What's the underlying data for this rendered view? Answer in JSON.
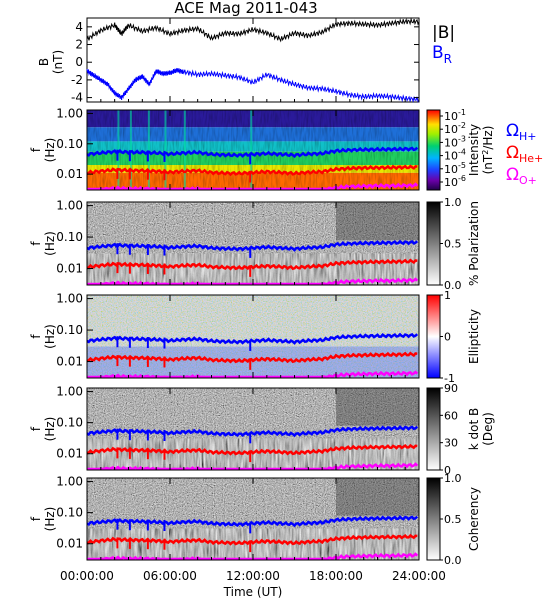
{
  "title": "ACE Mag 2011-043",
  "colors": {
    "B_mag": "#000000",
    "B_R": "#0000ff",
    "H_plus": "#0000ff",
    "He_plus": "#ff0000",
    "O_plus": "#ff00ff"
  },
  "chart_data": [
    {
      "type": "line",
      "panel": "B",
      "ylabel": "B",
      "yunit": "(nT)",
      "ylim": [
        -4.5,
        5
      ],
      "yticks": [
        "4",
        "2",
        "0",
        "-2",
        "-4"
      ],
      "ytick_values": [
        4,
        2,
        0,
        -2,
        -4
      ],
      "xlim": [
        0,
        24
      ],
      "series": [
        {
          "name": "|B|",
          "color": "#000000",
          "x": [
            0,
            1,
            2,
            2.5,
            3,
            4,
            5,
            6,
            7,
            8,
            9,
            10,
            11,
            12,
            13,
            14,
            15,
            16,
            17,
            18,
            19,
            20,
            21,
            22,
            23,
            24
          ],
          "y": [
            2.6,
            3.6,
            4.2,
            3.2,
            4.2,
            3.5,
            3.9,
            3.2,
            3.6,
            3.8,
            2.7,
            3.3,
            3.2,
            3.7,
            3.3,
            2.6,
            3.3,
            3.0,
            3.4,
            4.3,
            4.4,
            4.3,
            4.2,
            4.4,
            4.6,
            4.6
          ]
        },
        {
          "name": "B",
          "subscript": "R",
          "color": "#0000ff",
          "x": [
            0,
            0.5,
            1,
            1.5,
            2,
            2.5,
            3,
            3.5,
            4,
            4.5,
            5,
            5.5,
            6,
            6.5,
            7,
            8,
            9,
            10,
            11,
            12,
            13,
            14,
            15,
            16,
            17,
            18,
            19,
            20,
            21,
            22,
            23,
            24
          ],
          "y": [
            -1.0,
            -1.5,
            -2.0,
            -2.5,
            -3.5,
            -4.0,
            -3.0,
            -2.0,
            -1.6,
            -2.5,
            -1.0,
            -1.3,
            -1.2,
            -0.9,
            -1.1,
            -1.4,
            -1.3,
            -1.5,
            -1.7,
            -2.3,
            -1.4,
            -2.0,
            -2.5,
            -2.9,
            -3.0,
            -3.3,
            -3.7,
            -3.9,
            -3.8,
            -3.9,
            -4.1,
            -4.2
          ]
        }
      ]
    },
    {
      "type": "heatmap",
      "panel": "intensity",
      "ylabel": "f",
      "yunit": "(Hz)",
      "yscale": "log",
      "ylim": [
        0.003,
        1.3
      ],
      "yticks": [
        "1.00",
        "0.10",
        "0.01"
      ],
      "colorbar": {
        "label": "Intensity",
        "unit_base": "(nT",
        "unit_exp": "2",
        "unit_tail": "/Hz)",
        "scale": "log",
        "ticks": [
          {
            "base": "10",
            "exp": "-1"
          },
          {
            "base": "10",
            "exp": "-2"
          },
          {
            "base": "10",
            "exp": "-3"
          },
          {
            "base": "10",
            "exp": "-4"
          },
          {
            "base": "10",
            "exp": "-5"
          },
          {
            "base": "10",
            "exp": "-6"
          }
        ]
      },
      "legend": [
        {
          "symbol": "Ω",
          "sub": "H+",
          "color": "#0000ff"
        },
        {
          "symbol": "Ω",
          "sub": "He+",
          "color": "#ff0000"
        },
        {
          "symbol": "Ω",
          "sub": "O+",
          "color": "#ff00ff"
        }
      ]
    },
    {
      "type": "heatmap",
      "panel": "polarization",
      "ylabel": "f",
      "yunit": "(Hz)",
      "yscale": "log",
      "ylim": [
        0.003,
        1.3
      ],
      "yticks": [
        "1.00",
        "0.10",
        "0.01"
      ],
      "colorbar": {
        "label": "% Polarization",
        "ticks": [
          "1.0",
          "0.5",
          "0.0"
        ],
        "tick_values": [
          1.0,
          0.5,
          0.0
        ],
        "range": [
          0,
          1
        ]
      }
    },
    {
      "type": "heatmap",
      "panel": "ellipticity",
      "ylabel": "f",
      "yunit": "(Hz)",
      "yscale": "log",
      "ylim": [
        0.003,
        1.3
      ],
      "yticks": [
        "1.00",
        "0.10",
        "0.01"
      ],
      "colorbar": {
        "label": "Ellipticity",
        "ticks": [
          "1",
          "0",
          "-1"
        ],
        "tick_values": [
          1,
          0,
          -1
        ],
        "range": [
          -1,
          1
        ]
      }
    },
    {
      "type": "heatmap",
      "panel": "kdotb",
      "ylabel": "f",
      "yunit": "(Hz)",
      "yscale": "log",
      "ylim": [
        0.003,
        1.3
      ],
      "yticks": [
        "1.00",
        "0.10",
        "0.01"
      ],
      "colorbar": {
        "label": "k dot B",
        "unit": "(Deg)",
        "ticks": [
          "90",
          "60",
          "30",
          "0"
        ],
        "tick_values": [
          90,
          60,
          30,
          0
        ],
        "range": [
          0,
          90
        ]
      }
    },
    {
      "type": "heatmap",
      "panel": "coherency",
      "ylabel": "f",
      "yunit": "(Hz)",
      "yscale": "log",
      "ylim": [
        0.003,
        1.3
      ],
      "yticks": [
        "1.00",
        "0.10",
        "0.01"
      ],
      "colorbar": {
        "label": "Coherency",
        "ticks": [
          "1.0",
          "0.5",
          "0.0"
        ],
        "tick_values": [
          1.0,
          0.5,
          0.0
        ],
        "range": [
          0,
          1
        ]
      }
    }
  ],
  "gyro_frequencies": {
    "x": [
      0,
      1,
      2,
      3,
      4,
      5,
      6,
      7,
      8,
      9,
      10,
      11,
      12,
      13,
      14,
      15,
      16,
      17,
      18,
      19,
      20,
      21,
      22,
      23,
      24
    ],
    "H_plus_hz": [
      0.045,
      0.05,
      0.055,
      0.053,
      0.052,
      0.05,
      0.046,
      0.05,
      0.052,
      0.045,
      0.043,
      0.042,
      0.045,
      0.048,
      0.045,
      0.042,
      0.046,
      0.048,
      0.058,
      0.062,
      0.064,
      0.065,
      0.066,
      0.067,
      0.068
    ],
    "He_plus_hz": [
      0.011,
      0.0125,
      0.0138,
      0.0133,
      0.013,
      0.0125,
      0.0115,
      0.0125,
      0.013,
      0.0113,
      0.0108,
      0.0105,
      0.0113,
      0.012,
      0.0113,
      0.0105,
      0.0115,
      0.012,
      0.0145,
      0.0155,
      0.016,
      0.0163,
      0.0165,
      0.0168,
      0.017
    ],
    "O_plus_hz": [
      0.0028,
      0.0031,
      0.0034,
      0.0033,
      0.0033,
      0.0031,
      0.0029,
      0.0031,
      0.0033,
      0.0028,
      0.0027,
      0.0026,
      0.0028,
      0.003,
      0.0028,
      0.0026,
      0.0029,
      0.003,
      0.0036,
      0.0039,
      0.004,
      0.0041,
      0.0041,
      0.0042,
      0.0043
    ]
  },
  "x_axis": {
    "label": "Time (UT)",
    "ticks": [
      "00:00:00",
      "06:00:00",
      "12:00:00",
      "18:00:00",
      "24:00:00"
    ],
    "tick_values": [
      0,
      6,
      12,
      18,
      24
    ],
    "range": [
      0,
      24
    ]
  }
}
